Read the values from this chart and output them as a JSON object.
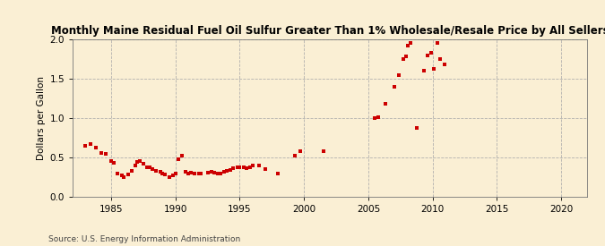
{
  "title": "Monthly Maine Residual Fuel Oil Sulfur Greater Than 1% Wholesale/Resale Price by All Sellers",
  "ylabel": "Dollars per Gallon",
  "source": "Source: U.S. Energy Information Administration",
  "background_color": "#faefd4",
  "marker_color": "#cc0000",
  "xlim": [
    1982,
    2022
  ],
  "ylim": [
    0.0,
    2.0
  ],
  "xticks": [
    1985,
    1990,
    1995,
    2000,
    2005,
    2010,
    2015,
    2020
  ],
  "yticks": [
    0.0,
    0.5,
    1.0,
    1.5,
    2.0
  ],
  "data_points": [
    [
      1983.0,
      0.65
    ],
    [
      1983.4,
      0.67
    ],
    [
      1983.8,
      0.63
    ],
    [
      1984.2,
      0.56
    ],
    [
      1984.6,
      0.55
    ],
    [
      1985.0,
      0.46
    ],
    [
      1985.2,
      0.43
    ],
    [
      1985.5,
      0.3
    ],
    [
      1985.8,
      0.27
    ],
    [
      1986.0,
      0.25
    ],
    [
      1986.3,
      0.28
    ],
    [
      1986.6,
      0.33
    ],
    [
      1986.9,
      0.4
    ],
    [
      1987.0,
      0.44
    ],
    [
      1987.2,
      0.45
    ],
    [
      1987.5,
      0.42
    ],
    [
      1987.8,
      0.38
    ],
    [
      1988.0,
      0.37
    ],
    [
      1988.2,
      0.35
    ],
    [
      1988.5,
      0.33
    ],
    [
      1988.8,
      0.32
    ],
    [
      1989.0,
      0.3
    ],
    [
      1989.2,
      0.28
    ],
    [
      1989.5,
      0.25
    ],
    [
      1989.8,
      0.27
    ],
    [
      1990.0,
      0.3
    ],
    [
      1990.2,
      0.48
    ],
    [
      1990.5,
      0.52
    ],
    [
      1990.8,
      0.32
    ],
    [
      1991.0,
      0.3
    ],
    [
      1991.2,
      0.31
    ],
    [
      1991.5,
      0.3
    ],
    [
      1991.8,
      0.29
    ],
    [
      1992.0,
      0.3
    ],
    [
      1992.5,
      0.31
    ],
    [
      1992.8,
      0.32
    ],
    [
      1993.0,
      0.31
    ],
    [
      1993.3,
      0.3
    ],
    [
      1993.5,
      0.3
    ],
    [
      1993.8,
      0.32
    ],
    [
      1994.0,
      0.33
    ],
    [
      1994.3,
      0.34
    ],
    [
      1994.5,
      0.36
    ],
    [
      1994.8,
      0.37
    ],
    [
      1995.0,
      0.38
    ],
    [
      1995.3,
      0.37
    ],
    [
      1995.5,
      0.36
    ],
    [
      1995.8,
      0.38
    ],
    [
      1996.0,
      0.4
    ],
    [
      1996.5,
      0.4
    ],
    [
      1997.0,
      0.35
    ],
    [
      1998.0,
      0.3
    ],
    [
      1999.3,
      0.52
    ],
    [
      1999.7,
      0.58
    ],
    [
      2001.5,
      0.58
    ],
    [
      2005.5,
      1.0
    ],
    [
      2005.8,
      1.01
    ],
    [
      2006.3,
      1.18
    ],
    [
      2007.0,
      1.4
    ],
    [
      2007.4,
      1.55
    ],
    [
      2007.7,
      1.75
    ],
    [
      2007.9,
      1.78
    ],
    [
      2008.1,
      1.92
    ],
    [
      2008.3,
      1.95
    ],
    [
      2008.8,
      0.88
    ],
    [
      2009.3,
      1.6
    ],
    [
      2009.6,
      1.8
    ],
    [
      2009.9,
      1.83
    ],
    [
      2010.1,
      1.62
    ],
    [
      2010.4,
      1.95
    ],
    [
      2010.6,
      1.75
    ],
    [
      2010.9,
      1.68
    ]
  ]
}
